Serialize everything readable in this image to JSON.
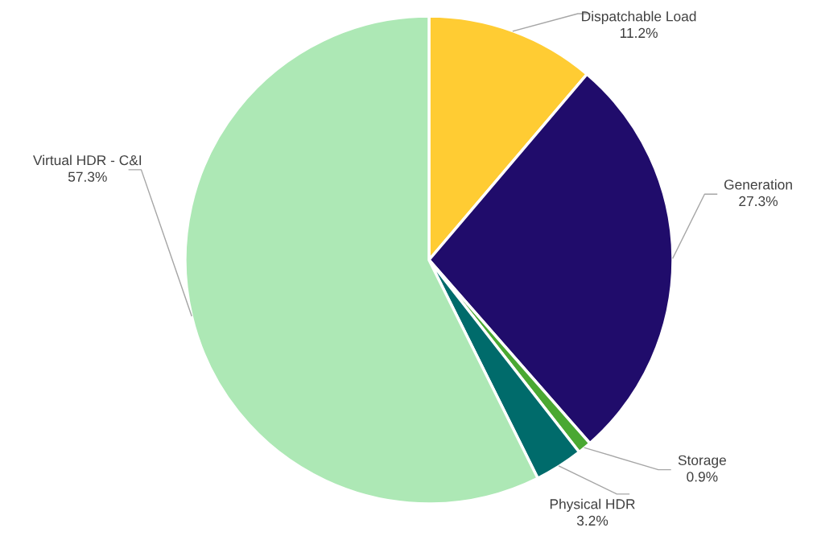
{
  "chart_data": {
    "type": "pie",
    "categories": [
      "Dispatchable Load",
      "Generation",
      "Storage",
      "Physical HDR",
      "Virtual HDR - C&I"
    ],
    "values": [
      11.2,
      27.3,
      0.9,
      3.2,
      57.3
    ],
    "value_labels": [
      "11.2%",
      "27.3%",
      "0.9%",
      "3.2%",
      "57.3%"
    ],
    "colors": [
      "#ffcc33",
      "#200c6b",
      "#4aa832",
      "#006b6b",
      "#ade8b5"
    ]
  }
}
